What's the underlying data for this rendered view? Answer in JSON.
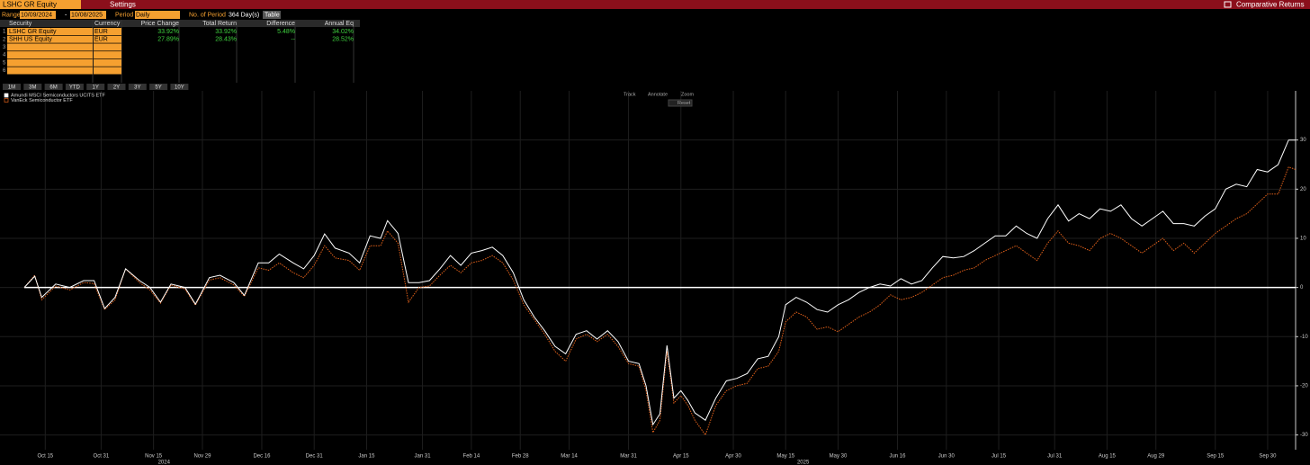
{
  "header": {
    "security": "LSHC GR Equity",
    "settings": "Settings",
    "function": "Comparative Returns"
  },
  "controls": {
    "range_label": "Range",
    "start": "10/09/2024",
    "separator": "-",
    "end": "10/08/2025",
    "period_label": "Period",
    "period": "Daily",
    "count_label": "No. of Period",
    "count": "364 Day(s)",
    "view": "Table"
  },
  "table": {
    "columns": [
      "Security",
      "Currency",
      "Price Change",
      "Total Return",
      "Difference",
      "Annual Eq"
    ],
    "row_numbers": [
      1,
      2,
      3,
      4,
      5,
      6
    ],
    "rows": [
      [
        "LSHC GR Equity",
        "EUR",
        "33.92%",
        "33.92%",
        "5.48%",
        "34.02%"
      ],
      [
        "SHH US Equity",
        "EUR",
        "27.89%",
        "28.43%",
        "--",
        "28.52%"
      ]
    ]
  },
  "range_buttons": [
    "1M",
    "3M",
    "6M",
    "YTD",
    "1Y",
    "2Y",
    "3Y",
    "5Y",
    "10Y"
  ],
  "toolbar": [
    "Track",
    "Annotate",
    "Zoom",
    "Reset"
  ],
  "chart_data": {
    "type": "line",
    "grid": true,
    "hline": 0,
    "xlim": [
      "2024-10-09",
      "2025-10-08"
    ],
    "xticks": [
      {
        "value": "2024-10-15",
        "label": "Oct 15"
      },
      {
        "value": "2024-10-31",
        "label": "Oct 31"
      },
      {
        "value": "2024-11-15",
        "label": "Nov 15"
      },
      {
        "value": "2024-11-29",
        "label": "Nov 29"
      },
      {
        "value": "2024-12-16",
        "label": "Dec 16"
      },
      {
        "value": "2024-12-31",
        "label": "Dec 31"
      },
      {
        "value": "2025-01-15",
        "label": "Jan 15"
      },
      {
        "value": "2025-01-31",
        "label": "Jan 31"
      },
      {
        "value": "2025-02-14",
        "label": "Feb 14"
      },
      {
        "value": "2025-02-28",
        "label": "Feb 28"
      },
      {
        "value": "2025-03-14",
        "label": "Mar 14"
      },
      {
        "value": "2025-03-31",
        "label": "Mar 31"
      },
      {
        "value": "2025-04-15",
        "label": "Apr 15"
      },
      {
        "value": "2025-04-30",
        "label": "Apr 30"
      },
      {
        "value": "2025-05-15",
        "label": "May 15"
      },
      {
        "value": "2025-05-30",
        "label": "May 30"
      },
      {
        "value": "2025-06-16",
        "label": "Jun 16"
      },
      {
        "value": "2025-06-30",
        "label": "Jun 30"
      },
      {
        "value": "2025-07-15",
        "label": "Jul 15"
      },
      {
        "value": "2025-07-31",
        "label": "Jul 31"
      },
      {
        "value": "2025-08-15",
        "label": "Aug 15"
      },
      {
        "value": "2025-08-29",
        "label": "Aug 29"
      },
      {
        "value": "2025-09-15",
        "label": "Sep 15"
      },
      {
        "value": "2025-09-30",
        "label": "Sep 30"
      }
    ],
    "xyears": [
      {
        "value": "2024-11-18",
        "label": "2024"
      },
      {
        "value": "2025-05-20",
        "label": "2025"
      }
    ],
    "ylim": [
      -33,
      40
    ],
    "yticks": [
      -30,
      -20,
      -10,
      0,
      10,
      20,
      30
    ],
    "x": [
      "2024-10-09",
      "2024-10-12",
      "2024-10-14",
      "2024-10-18",
      "2024-10-22",
      "2024-10-26",
      "2024-10-29",
      "2024-11-01",
      "2024-11-04",
      "2024-11-07",
      "2024-11-11",
      "2024-11-14",
      "2024-11-17",
      "2024-11-20",
      "2024-11-24",
      "2024-11-27",
      "2024-12-01",
      "2024-12-04",
      "2024-12-08",
      "2024-12-11",
      "2024-12-15",
      "2024-12-18",
      "2024-12-21",
      "2024-12-25",
      "2024-12-28",
      "2024-12-31",
      "2025-01-03",
      "2025-01-06",
      "2025-01-10",
      "2025-01-13",
      "2025-01-16",
      "2025-01-19",
      "2025-01-21",
      "2025-01-24",
      "2025-01-27",
      "2025-01-30",
      "2025-02-02",
      "2025-02-05",
      "2025-02-08",
      "2025-02-11",
      "2025-02-14",
      "2025-02-17",
      "2025-02-20",
      "2025-02-23",
      "2025-02-26",
      "2025-03-01",
      "2025-03-04",
      "2025-03-07",
      "2025-03-10",
      "2025-03-13",
      "2025-03-16",
      "2025-03-19",
      "2025-03-22",
      "2025-03-25",
      "2025-03-28",
      "2025-03-31",
      "2025-04-03",
      "2025-04-05",
      "2025-04-07",
      "2025-04-09",
      "2025-04-11",
      "2025-04-13",
      "2025-04-15",
      "2025-04-17",
      "2025-04-19",
      "2025-04-22",
      "2025-04-25",
      "2025-04-28",
      "2025-05-01",
      "2025-05-04",
      "2025-05-07",
      "2025-05-10",
      "2025-05-13",
      "2025-05-15",
      "2025-05-18",
      "2025-05-21",
      "2025-05-24",
      "2025-05-27",
      "2025-05-30",
      "2025-06-02",
      "2025-06-05",
      "2025-06-08",
      "2025-06-11",
      "2025-06-14",
      "2025-06-17",
      "2025-06-20",
      "2025-06-23",
      "2025-06-26",
      "2025-06-29",
      "2025-07-02",
      "2025-07-05",
      "2025-07-08",
      "2025-07-11",
      "2025-07-14",
      "2025-07-17",
      "2025-07-20",
      "2025-07-23",
      "2025-07-26",
      "2025-07-29",
      "2025-08-01",
      "2025-08-04",
      "2025-08-07",
      "2025-08-10",
      "2025-08-13",
      "2025-08-16",
      "2025-08-19",
      "2025-08-22",
      "2025-08-25",
      "2025-08-28",
      "2025-08-31",
      "2025-09-03",
      "2025-09-06",
      "2025-09-09",
      "2025-09-12",
      "2025-09-15",
      "2025-09-18",
      "2025-09-21",
      "2025-09-24",
      "2025-09-27",
      "2025-09-30",
      "2025-10-03",
      "2025-10-06",
      "2025-10-08"
    ],
    "series": [
      {
        "name": "Amundi MSCI Semiconductors UCITS ETF",
        "color": "#ffffff",
        "style": "solid",
        "values": [
          0,
          2.3,
          -2,
          0.7,
          0,
          1.4,
          1.4,
          -4.3,
          -2,
          3.8,
          1.4,
          0,
          -3,
          0.7,
          0,
          -3.4,
          2,
          2.5,
          1,
          -1.6,
          5,
          5,
          6.8,
          5,
          3.8,
          6.5,
          10.9,
          8,
          7,
          5,
          10.5,
          10,
          13.6,
          11,
          1,
          1,
          1.4,
          3.8,
          6.5,
          4.5,
          7,
          7.5,
          8.2,
          6.5,
          3,
          -2.5,
          -6,
          -8.8,
          -12,
          -13.5,
          -9.5,
          -8.8,
          -10.5,
          -8.8,
          -11,
          -15,
          -15.5,
          -20,
          -27.9,
          -25.7,
          -11.8,
          -22.5,
          -21,
          -23,
          -25.5,
          -27,
          -22.5,
          -19,
          -18.5,
          -17.5,
          -14.5,
          -14,
          -10,
          -3.5,
          -2,
          -3,
          -4.5,
          -5,
          -3.5,
          -2.5,
          -1,
          0,
          0.7,
          0.3,
          1.8,
          0.7,
          1.4,
          4,
          6.3,
          6,
          6.3,
          7.5,
          9,
          10.5,
          10.5,
          12.5,
          11,
          10,
          14,
          16.8,
          13.5,
          15,
          14,
          16,
          15.5,
          16.8,
          14,
          12.5,
          14,
          15.5,
          13,
          13,
          12.5,
          14.5,
          16,
          20,
          21,
          20.5,
          24,
          23.5,
          25,
          30,
          30
        ]
      },
      {
        "name": "VanEck Semiconductor ETF",
        "color": "#e0601a",
        "style": "dotted",
        "values": [
          0,
          2.5,
          -2.5,
          0.3,
          -0.5,
          1,
          0.8,
          -4.5,
          -2.5,
          3.8,
          1,
          -0.5,
          -3.2,
          0.5,
          -0.3,
          -3.6,
          1.5,
          2,
          0.5,
          -1.8,
          4,
          3.5,
          5,
          3,
          2,
          4.5,
          8.5,
          6,
          5.5,
          3.5,
          8.5,
          8.5,
          11.5,
          9,
          -3,
          0,
          0.3,
          2.5,
          4.5,
          3,
          5,
          5.5,
          6.5,
          5,
          1.5,
          -3.5,
          -6.5,
          -9.5,
          -13,
          -15,
          -10.5,
          -9.5,
          -11,
          -9.5,
          -12,
          -15.5,
          -16,
          -21,
          -29.5,
          -27,
          -13,
          -23.5,
          -22,
          -24,
          -27,
          -30,
          -24,
          -21,
          -20,
          -19.5,
          -16.5,
          -16,
          -13,
          -7,
          -5,
          -6,
          -8.5,
          -8,
          -9,
          -7.5,
          -6,
          -5,
          -3.5,
          -1.5,
          -2.5,
          -2,
          -1,
          0.5,
          2,
          2.5,
          3.5,
          4,
          5.5,
          6.5,
          7.5,
          8.5,
          7,
          5.5,
          9,
          11.5,
          9,
          8.5,
          7.5,
          10,
          11,
          10,
          8.5,
          7,
          8.5,
          10,
          7.5,
          9,
          7,
          9,
          11,
          12.5,
          14,
          15,
          17,
          19,
          19,
          24.5,
          24
        ]
      }
    ]
  }
}
